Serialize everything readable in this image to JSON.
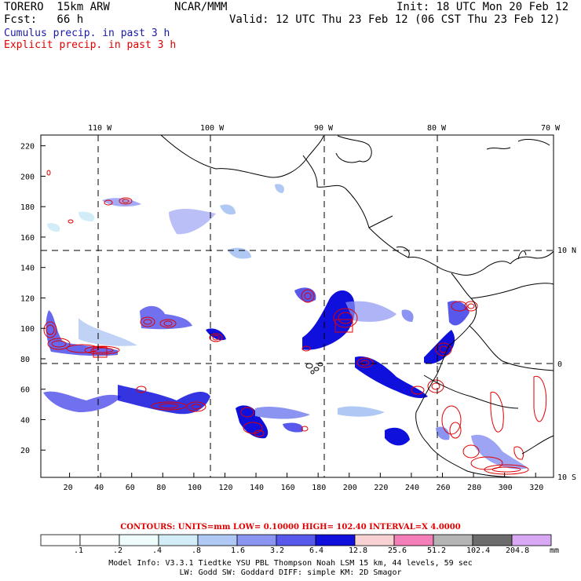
{
  "header": {
    "model": "TORERO  15km ARW",
    "center": "NCAR/MMM",
    "init": "Init: 18 UTC Mon 20 Feb 12",
    "fcst": "Fcst:   66 h",
    "valid": "Valid: 12 UTC Thu 23 Feb 12 (06 CST Thu 23 Feb 12)",
    "cumulus": "Cumulus precip. in past 3 h",
    "explicit": "Explicit precip. in past 3 h"
  },
  "map": {
    "lon_labels": [
      "110 W",
      "100 W",
      "90 W",
      "80 W",
      "70 W"
    ],
    "lat_labels": [
      "10 N",
      "0",
      "10 S"
    ],
    "y_ticks": [
      "220",
      "200",
      "180",
      "160",
      "140",
      "120",
      "100",
      "80",
      "60",
      "40",
      "20"
    ],
    "x_ticks": [
      "20",
      "40",
      "60",
      "80",
      "100",
      "120",
      "140",
      "160",
      "180",
      "200",
      "220",
      "240",
      "260",
      "280",
      "300",
      "320"
    ],
    "colors": {
      "cumulus": "#1010e0",
      "explicit": "#e00000",
      "coast": "#000000"
    }
  },
  "legend": {
    "contours_text": "CONTOURS:  UNITS=mm  LOW= 0.10000        HIGH=  102.40        INTERVAL=X  4.0000",
    "unit": "mm",
    "levels": [
      ".1",
      ".2",
      ".4",
      ".8",
      "1.6",
      "3.2",
      "6.4",
      "12.8",
      "25.6",
      "51.2",
      "102.4",
      "204.8"
    ],
    "colors": [
      "#ffffff",
      "#ffffff",
      "#eefcfc",
      "#d2ecf8",
      "#b0c8f4",
      "#8c94f2",
      "#5858ec",
      "#1010dc",
      "#f8d2d2",
      "#f47eb8",
      "#b4b4b4",
      "#6c6c6c",
      "#d8a8f4"
    ]
  },
  "footer": {
    "line1": "Model Info: V3.3.1   Tiedtke YSU PBL  Thompson    Noah LSM  15 km,   44 levels,   59 sec",
    "line2": "LW: Godd SW: Goddard DIFF: simple KM: 2D Smagor"
  }
}
